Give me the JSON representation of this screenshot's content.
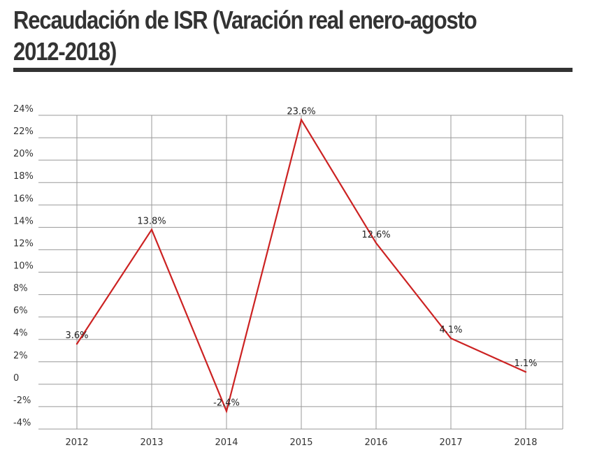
{
  "title": "Recaudación de ISR (Varación real enero-agosto 2012-2018)",
  "chart_data": {
    "type": "line",
    "title": "Recaudación de ISR (Varación real enero-agosto 2012-2018)",
    "categories": [
      "2012",
      "2013",
      "2014",
      "2015",
      "2016",
      "2017",
      "2018"
    ],
    "series": [
      {
        "values": [
          3.6,
          13.8,
          -2.4,
          23.6,
          12.6,
          4.1,
          1.1
        ],
        "labels": [
          "3.6%",
          "13.8%",
          "-2.4%",
          "23.6%",
          "12.6%",
          "4.1%",
          "1.1%"
        ],
        "color": "#cc2222"
      }
    ],
    "y_ticks": [
      {
        "value": 24,
        "label": "24%"
      },
      {
        "value": 22,
        "label": "22%"
      },
      {
        "value": 20,
        "label": "20%"
      },
      {
        "value": 18,
        "label": "18%"
      },
      {
        "value": 16,
        "label": "16%"
      },
      {
        "value": 14,
        "label": "14%"
      },
      {
        "value": 12,
        "label": "12%"
      },
      {
        "value": 10,
        "label": "10%"
      },
      {
        "value": 8,
        "label": "8%"
      },
      {
        "value": 6,
        "label": "6%"
      },
      {
        "value": 4,
        "label": "4%"
      },
      {
        "value": 2,
        "label": "2%"
      },
      {
        "value": 0,
        "label": "0"
      },
      {
        "value": -2,
        "label": "-2%"
      },
      {
        "value": -4,
        "label": "-4%"
      }
    ],
    "ylim": [
      -4,
      24
    ],
    "xlabel": "",
    "ylabel": "",
    "grid": true,
    "legend": "none",
    "colors": {
      "line": "#cc2222",
      "grid": "#999999",
      "title_text": "#333333"
    }
  }
}
